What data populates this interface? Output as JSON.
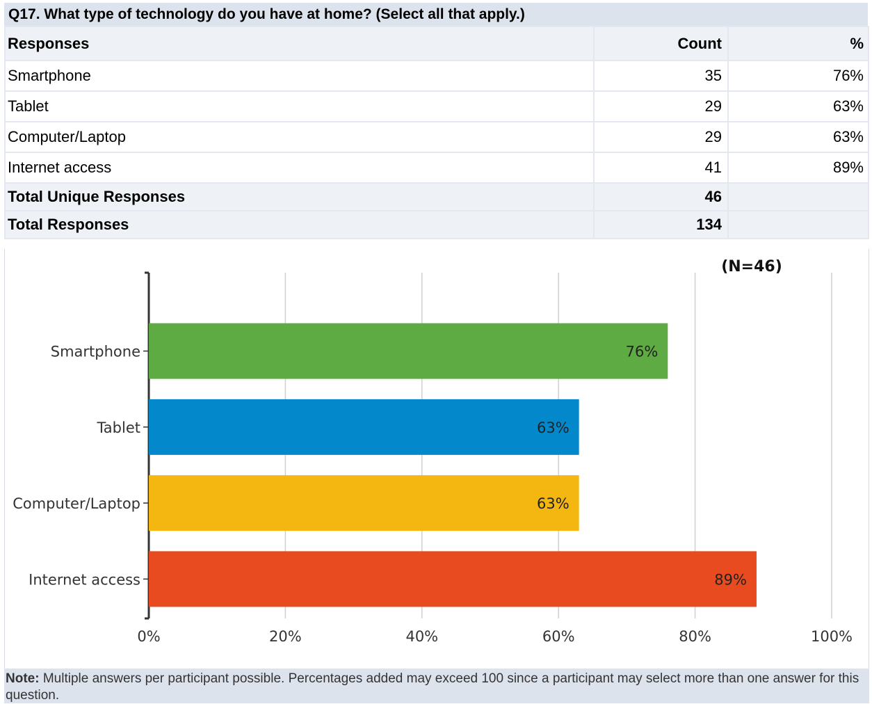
{
  "question": "Q17.  What type of technology do you have at home? (Select all that apply.)",
  "table": {
    "headers": [
      "Responses",
      "Count",
      "%"
    ],
    "rows": [
      {
        "label": "Smartphone",
        "count": "35",
        "pct": "76%"
      },
      {
        "label": "Tablet",
        "count": "29",
        "pct": "63%"
      },
      {
        "label": "Computer/Laptop",
        "count": "29",
        "pct": "63%"
      },
      {
        "label": "Internet access",
        "count": "41",
        "pct": "89%"
      }
    ],
    "totals": [
      {
        "label": "Total Unique Responses",
        "count": "46",
        "pct": ""
      },
      {
        "label": "Total Responses",
        "count": "134",
        "pct": ""
      }
    ]
  },
  "chart_data": {
    "type": "bar",
    "orientation": "horizontal",
    "annotation": "(N=46)",
    "categories": [
      "Smartphone",
      "Tablet",
      "Computer/Laptop",
      "Internet access"
    ],
    "values": [
      76,
      63,
      63,
      89
    ],
    "value_labels": [
      "76%",
      "63%",
      "63%",
      "89%"
    ],
    "colors": [
      "#5fab43",
      "#0388cc",
      "#f4b712",
      "#e84b1f"
    ],
    "xlim": [
      0,
      100
    ],
    "xticks": [
      0,
      20,
      40,
      60,
      80,
      100
    ],
    "xtick_labels": [
      "0%",
      "20%",
      "40%",
      "60%",
      "80%",
      "100%"
    ],
    "grid": true
  },
  "note": {
    "label": "Note:",
    "text": " Multiple answers per participant possible. Percentages added may exceed 100 since a participant may select more than one answer for this question."
  }
}
